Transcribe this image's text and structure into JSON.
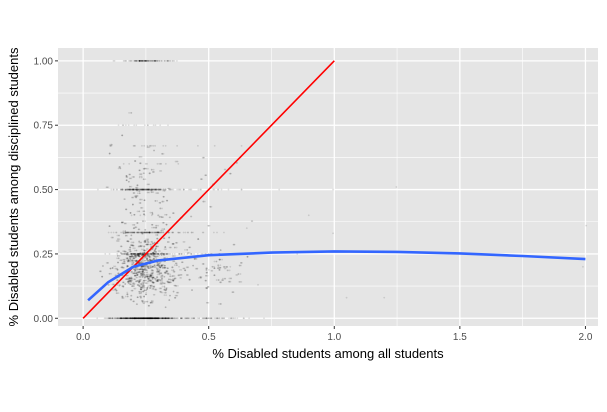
{
  "chart_data": {
    "type": "scatter",
    "xlabel": "% Disabled students among all students",
    "ylabel": "% Disabled students among disciplined students",
    "xlim": [
      -0.1,
      2.05
    ],
    "ylim": [
      -0.03,
      1.05
    ],
    "x_ticks": [
      {
        "value": 0.0,
        "label": "0.0"
      },
      {
        "value": 0.5,
        "label": "0.5"
      },
      {
        "value": 1.0,
        "label": "1.0"
      },
      {
        "value": 1.5,
        "label": "1.5"
      },
      {
        "value": 2.0,
        "label": "2.0"
      }
    ],
    "y_ticks": [
      {
        "value": 0.0,
        "label": "0.00"
      },
      {
        "value": 0.25,
        "label": "0.25"
      },
      {
        "value": 0.5,
        "label": "0.50"
      },
      {
        "value": 0.75,
        "label": "0.75"
      },
      {
        "value": 1.0,
        "label": "1.00"
      }
    ],
    "grid": true,
    "background_color": "#e5e5e5",
    "grid_color": "#ffffff",
    "point_color": "#000000",
    "point_opacity": 0.12,
    "point_count_estimate": 3500,
    "point_distribution_note": "dense cloud concentrated at x 0.05-0.5, y 0-0.5; horizontal bands at y = 0, 0.25, 0.33, 0.5, 1.0",
    "reference_line": {
      "name": "y = x",
      "color": "#ff0000",
      "x": [
        0.0,
        1.0
      ],
      "y": [
        0.0,
        1.0
      ]
    },
    "smooth_curve": {
      "color": "#3366ff",
      "x": [
        0.02,
        0.1,
        0.2,
        0.3,
        0.5,
        0.75,
        1.0,
        1.25,
        1.5,
        1.75,
        2.0
      ],
      "y": [
        0.07,
        0.14,
        0.2,
        0.225,
        0.245,
        0.255,
        0.26,
        0.258,
        0.252,
        0.242,
        0.23
      ]
    }
  }
}
